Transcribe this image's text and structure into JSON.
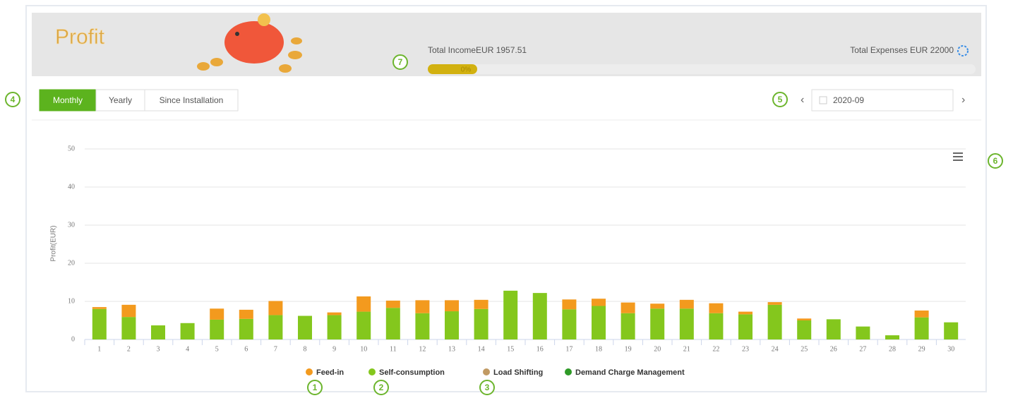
{
  "header": {
    "title": "Profit",
    "income_label": "Total IncomeEUR 1957.51",
    "progress": "0%",
    "expenses_label": "Total Expenses EUR 22000"
  },
  "tabs": [
    "Monthly",
    "Yearly",
    "Since Installation"
  ],
  "date": "2020-09",
  "annotations": [
    "1",
    "2",
    "3",
    "4",
    "5",
    "6",
    "7"
  ],
  "chart_data": {
    "type": "bar",
    "stacked": true,
    "y_label": "Profit(EUR)",
    "categories": [
      "1",
      "2",
      "3",
      "4",
      "5",
      "6",
      "7",
      "8",
      "9",
      "10",
      "11",
      "12",
      "13",
      "14",
      "15",
      "16",
      "17",
      "18",
      "19",
      "20",
      "21",
      "22",
      "23",
      "24",
      "25",
      "26",
      "27",
      "28",
      "29",
      "30"
    ],
    "series": [
      {
        "name": "Feed-in",
        "color": "#f39a1e",
        "values": [
          0.5,
          3.2,
          0,
          0,
          2.9,
          2.4,
          3.7,
          0,
          0.7,
          4.0,
          1.9,
          3.4,
          2.9,
          2.4,
          0,
          0,
          2.6,
          1.9,
          2.8,
          1.3,
          2.3,
          2.6,
          0.7,
          0.7,
          0.5,
          0,
          0,
          0,
          1.8,
          0
        ]
      },
      {
        "name": "Self-consumption",
        "color": "#84c71d",
        "values": [
          8.0,
          5.9,
          3.7,
          4.3,
          5.2,
          5.4,
          6.4,
          6.2,
          6.4,
          7.3,
          8.3,
          6.9,
          7.4,
          8.0,
          12.8,
          12.2,
          7.9,
          8.8,
          6.9,
          8.1,
          8.1,
          6.9,
          6.6,
          9.1,
          5.0,
          5.3,
          3.4,
          1.1,
          5.8,
          4.5
        ]
      },
      {
        "name": "Load Shifting",
        "color": "#c19a63",
        "values": [
          0,
          0,
          0,
          0,
          0,
          0,
          0,
          0,
          0,
          0,
          0,
          0,
          0,
          0,
          0,
          0,
          0,
          0,
          0,
          0,
          0,
          0,
          0,
          0,
          0,
          0,
          0,
          0,
          0,
          0
        ]
      },
      {
        "name": "Demand Charge Management",
        "color": "#2f9a27",
        "values": [
          0,
          0,
          0,
          0,
          0,
          0,
          0,
          0,
          0,
          0,
          0,
          0,
          0,
          0,
          0,
          0,
          0,
          0,
          0,
          0,
          0,
          0,
          0,
          0,
          0,
          0,
          0,
          0,
          0,
          0
        ]
      }
    ],
    "ylim": [
      0,
      50
    ],
    "yticks": [
      0,
      10,
      20,
      30,
      40,
      50
    ],
    "grid": true
  }
}
